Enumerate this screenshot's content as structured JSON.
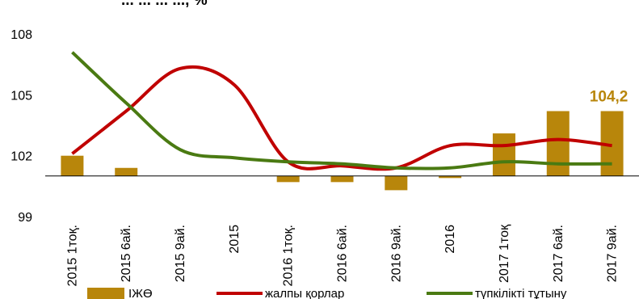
{
  "chart_data": {
    "type": "bar",
    "title": "... ... ... ..., %",
    "categories": [
      "2015 1тоқ.",
      "2015 6ай.",
      "2015 9ай.",
      "2015",
      "2016 1тоқ.",
      "2016 6ай.",
      "2016 9ай.",
      "2016",
      "2017 1тоқ",
      "2017 6ай.",
      "2017 9ай."
    ],
    "ylim": [
      99,
      109
    ],
    "yticks": [
      99,
      102,
      105,
      108
    ],
    "baseline": 101,
    "grid": false,
    "legend_position": "bottom",
    "series": [
      {
        "name": "ІЖӨ",
        "type": "bar",
        "color": "#b8860b",
        "values": [
          102.0,
          101.4,
          101.0,
          101.0,
          100.7,
          100.7,
          100.3,
          100.9,
          103.1,
          104.2,
          104.2
        ]
      },
      {
        "name": "жалпы қорлар",
        "type": "line",
        "color": "#c00000",
        "values": [
          102.1,
          104.2,
          106.3,
          105.5,
          101.7,
          101.5,
          101.4,
          102.5,
          102.5,
          102.8,
          102.5
        ]
      },
      {
        "name": "түпкілікті тұтыну",
        "type": "line",
        "color": "#4a7a12",
        "values": [
          107.1,
          104.6,
          102.3,
          101.9,
          101.7,
          101.6,
          101.4,
          101.4,
          101.7,
          101.6,
          101.6
        ]
      }
    ],
    "data_labels": [
      {
        "category": "2017 9ай.",
        "text": "104,2",
        "color": "#b8860b"
      }
    ]
  }
}
